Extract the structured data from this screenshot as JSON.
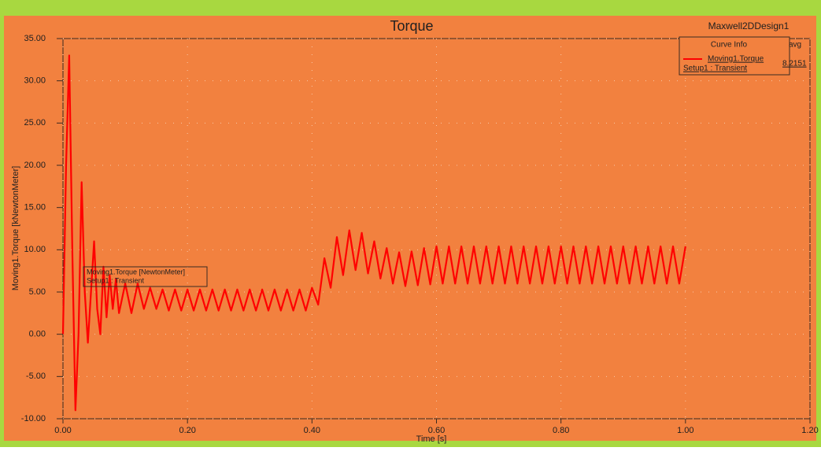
{
  "chart_data": {
    "type": "line",
    "title": "Torque",
    "design_name": "Maxwell2DDesign1",
    "x_label": "Time [s]",
    "y_label": "Moving1.Torque [kNewtonMeter]",
    "xlim": [
      0,
      1.2
    ],
    "ylim": [
      -10,
      35
    ],
    "xticks": [
      {
        "value": 0,
        "label": "0.00"
      },
      {
        "value": 0.2,
        "label": "0.20"
      },
      {
        "value": 0.4,
        "label": "0.40"
      },
      {
        "value": 0.6,
        "label": "0.60"
      },
      {
        "value": 0.8,
        "label": "0.80"
      },
      {
        "value": 1.0,
        "label": "1.00"
      },
      {
        "value": 1.2,
        "label": "1.20"
      }
    ],
    "yticks": [
      {
        "value": -10,
        "label": "-10.00"
      },
      {
        "value": -5,
        "label": "-5.00"
      },
      {
        "value": 0,
        "label": "0.00"
      },
      {
        "value": 5,
        "label": "5.00"
      },
      {
        "value": 10,
        "label": "10.00"
      },
      {
        "value": 15,
        "label": "15.00"
      },
      {
        "value": 20,
        "label": "20.00"
      },
      {
        "value": 25,
        "label": "25.00"
      },
      {
        "value": 30,
        "label": "30.00"
      },
      {
        "value": 35,
        "label": "35.00"
      }
    ],
    "grid": true,
    "legend": {
      "header": [
        "Curve Info",
        "avg"
      ]
    },
    "annotation": [
      "Moving1.Torque [NewtonMeter]",
      "Setup1 : Transient"
    ],
    "x": [
      0,
      0.005,
      0.01,
      0.015,
      0.02,
      0.025,
      0.03,
      0.035,
      0.04,
      0.045,
      0.05,
      0.055,
      0.06,
      0.065,
      0.07,
      0.075,
      0.08,
      0.085,
      0.09,
      0.1,
      0.11,
      0.12,
      0.13,
      0.14,
      0.15,
      0.16,
      0.17,
      0.18,
      0.19,
      0.2,
      0.21,
      0.22,
      0.23,
      0.24,
      0.25,
      0.26,
      0.27,
      0.28,
      0.29,
      0.3,
      0.31,
      0.32,
      0.33,
      0.34,
      0.35,
      0.36,
      0.37,
      0.38,
      0.39,
      0.4,
      0.41,
      0.42,
      0.43,
      0.44,
      0.45,
      0.46,
      0.47,
      0.48,
      0.49,
      0.5,
      0.51,
      0.52,
      0.53,
      0.54,
      0.55,
      0.56,
      0.57,
      0.58,
      0.59,
      0.6,
      0.61,
      0.62,
      0.63,
      0.64,
      0.65,
      0.66,
      0.67,
      0.68,
      0.69,
      0.7,
      0.71,
      0.72,
      0.73,
      0.74,
      0.75,
      0.76,
      0.77,
      0.78,
      0.79,
      0.8,
      0.81,
      0.82,
      0.83,
      0.84,
      0.85,
      0.86,
      0.87,
      0.88,
      0.89,
      0.9,
      0.91,
      0.92,
      0.93,
      0.94,
      0.95,
      0.96,
      0.97,
      0.98,
      0.99,
      1.0
    ],
    "series": [
      {
        "name": "Moving1.Torque",
        "setup": "Setup1 : Transient",
        "avg": 8.2151,
        "color": "#ff0000",
        "values": [
          0,
          20,
          33,
          10,
          -9,
          0,
          18,
          5,
          -1,
          5,
          11,
          3,
          0,
          8,
          2,
          7,
          3,
          6.5,
          2.5,
          6,
          2.5,
          6,
          3,
          5.5,
          3,
          5.3,
          2.8,
          5.3,
          2.8,
          5.3,
          2.8,
          5.3,
          2.8,
          5.3,
          2.8,
          5.3,
          2.8,
          5.3,
          2.8,
          5.3,
          2.8,
          5.3,
          2.8,
          5.3,
          2.8,
          5.3,
          2.8,
          5.3,
          2.8,
          5.5,
          3.5,
          9,
          5.5,
          11.5,
          7,
          12.3,
          7.6,
          12,
          7.2,
          11,
          6.6,
          10.2,
          6,
          9.7,
          5.7,
          9.8,
          5.8,
          10.2,
          5.9,
          10.4,
          6,
          10.4,
          6,
          10.4,
          6,
          10.4,
          6,
          10.4,
          6,
          10.4,
          6,
          10.4,
          6,
          10.4,
          6,
          10.4,
          6,
          10.4,
          6,
          10.4,
          6,
          10.4,
          6,
          10.4,
          6,
          10.4,
          6,
          10.4,
          6,
          10.4,
          6,
          10.4,
          6,
          10.4,
          6,
          10.4,
          6,
          10.4,
          6,
          10.4
        ]
      }
    ]
  }
}
